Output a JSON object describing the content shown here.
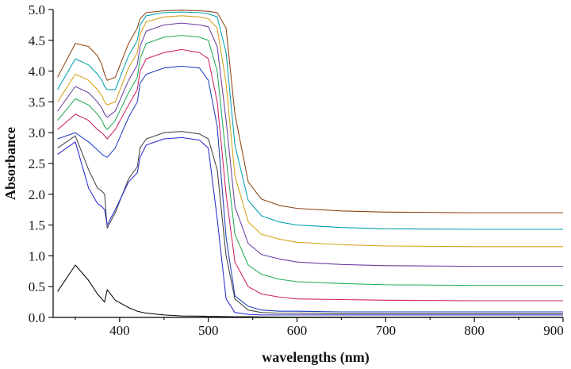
{
  "chart_data": {
    "type": "line",
    "xlabel": "wavelengths (nm)",
    "ylabel": "Absorbance",
    "xlim": [
      325,
      900
    ],
    "ylim": [
      0,
      5
    ],
    "x_ticks": [
      "400",
      "500",
      "600",
      "700",
      "800",
      "900"
    ],
    "y_ticks": [
      "0.0",
      "0.5",
      "1.0",
      "1.5",
      "2.0",
      "2.5",
      "3.0",
      "3.5",
      "4.0",
      "4.5",
      "5.0"
    ],
    "grid": false,
    "legend": "none",
    "x": [
      330,
      350,
      365,
      375,
      380,
      383,
      386,
      395,
      410,
      420,
      423,
      430,
      450,
      470,
      490,
      500,
      510,
      520,
      530,
      545,
      560,
      580,
      600,
      650,
      700,
      800,
      900
    ],
    "series": [
      {
        "values": [
          0.42,
          0.85,
          0.6,
          0.38,
          0.3,
          0.25,
          0.45,
          0.28,
          0.16,
          0.1,
          0.09,
          0.07,
          0.04,
          0.025,
          0.02,
          0.018,
          0.015,
          0.013,
          0.012,
          0.01,
          0.008,
          0.006,
          0.005,
          0.004,
          0.003,
          0.002,
          0.002
        ]
      },
      {
        "values": [
          2.9,
          3.0,
          2.85,
          2.72,
          2.65,
          2.62,
          2.6,
          2.75,
          3.25,
          3.5,
          3.8,
          3.95,
          4.05,
          4.08,
          4.05,
          3.85,
          3.1,
          1.3,
          0.35,
          0.18,
          0.12,
          0.1,
          0.1,
          0.09,
          0.09,
          0.09,
          0.09
        ]
      },
      {
        "values": [
          3.05,
          3.3,
          3.2,
          3.05,
          3.0,
          2.95,
          2.9,
          3.05,
          3.45,
          3.7,
          4.0,
          4.2,
          4.3,
          4.35,
          4.3,
          4.2,
          3.5,
          2.0,
          0.9,
          0.5,
          0.38,
          0.33,
          0.3,
          0.29,
          0.28,
          0.27,
          0.27
        ]
      },
      {
        "values": [
          3.2,
          3.55,
          3.45,
          3.3,
          3.2,
          3.1,
          3.05,
          3.2,
          3.65,
          3.9,
          4.2,
          4.45,
          4.55,
          4.58,
          4.55,
          4.5,
          4.0,
          2.6,
          1.35,
          0.85,
          0.7,
          0.62,
          0.58,
          0.55,
          0.53,
          0.52,
          0.52
        ]
      },
      {
        "values": [
          3.35,
          3.75,
          3.65,
          3.5,
          3.4,
          3.3,
          3.25,
          3.35,
          3.85,
          4.1,
          4.4,
          4.65,
          4.75,
          4.78,
          4.75,
          4.72,
          4.4,
          3.2,
          1.8,
          1.2,
          1.02,
          0.95,
          0.9,
          0.86,
          0.84,
          0.83,
          0.83
        ]
      },
      {
        "values": [
          3.5,
          3.95,
          3.85,
          3.7,
          3.6,
          3.5,
          3.45,
          3.5,
          4.05,
          4.3,
          4.6,
          4.8,
          4.88,
          4.9,
          4.88,
          4.85,
          4.7,
          3.8,
          2.3,
          1.55,
          1.35,
          1.27,
          1.22,
          1.18,
          1.16,
          1.15,
          1.15
        ]
      },
      {
        "values": [
          3.7,
          4.2,
          4.1,
          3.95,
          3.85,
          3.75,
          3.7,
          3.7,
          4.25,
          4.5,
          4.75,
          4.9,
          4.95,
          4.96,
          4.95,
          4.93,
          4.88,
          4.3,
          2.8,
          1.9,
          1.65,
          1.55,
          1.5,
          1.46,
          1.44,
          1.43,
          1.43
        ]
      },
      {
        "values": [
          3.9,
          4.45,
          4.4,
          4.25,
          4.1,
          3.95,
          3.85,
          3.9,
          4.45,
          4.7,
          4.85,
          4.95,
          4.98,
          4.99,
          4.98,
          4.97,
          4.95,
          4.7,
          3.3,
          2.2,
          1.92,
          1.82,
          1.77,
          1.73,
          1.71,
          1.7,
          1.7
        ]
      },
      {
        "values": [
          2.75,
          2.95,
          2.4,
          2.1,
          2.05,
          2.0,
          1.45,
          1.7,
          2.25,
          2.45,
          2.75,
          2.9,
          3.0,
          3.02,
          2.98,
          2.9,
          2.4,
          1.0,
          0.3,
          0.12,
          0.08,
          0.07,
          0.07,
          0.06,
          0.06,
          0.06,
          0.06
        ]
      },
      {
        "values": [
          2.65,
          2.85,
          2.1,
          1.85,
          1.8,
          1.75,
          1.5,
          1.75,
          2.2,
          2.35,
          2.6,
          2.8,
          2.9,
          2.92,
          2.88,
          2.75,
          1.6,
          0.3,
          0.08,
          0.05,
          0.04,
          0.04,
          0.04,
          0.04,
          0.04,
          0.04,
          0.04
        ]
      }
    ],
    "colors": [
      "#000000",
      "#1f3fbf",
      "#cc2266",
      "#22aa55",
      "#6b3fa0",
      "#d4a017",
      "#00a0b0",
      "#8b4513",
      "#444444",
      "#2b2bd0"
    ]
  }
}
